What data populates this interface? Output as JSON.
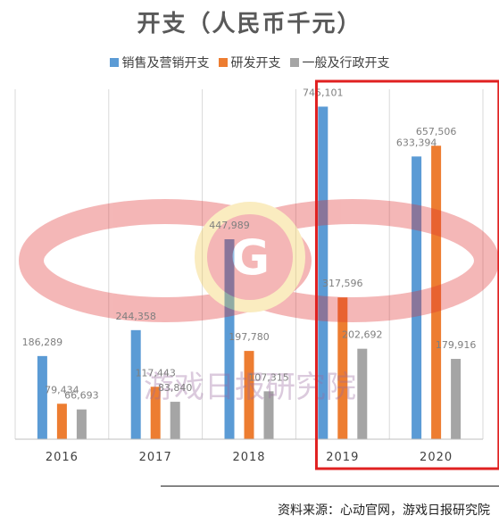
{
  "chart_data": {
    "type": "bar",
    "title": "开支（人民币千元）",
    "categories": [
      "2016",
      "2017",
      "2018",
      "2019",
      "2020"
    ],
    "series": [
      {
        "name": "销售及营销开支",
        "color": "#5b9bd5",
        "values": [
          186289,
          244358,
          447989,
          745101,
          633394
        ],
        "labels": [
          "186,289",
          "244,358",
          "447,989",
          "745,101",
          "633,394"
        ]
      },
      {
        "name": "研发开支",
        "color": "#ed7d31",
        "values": [
          79434,
          117443,
          197780,
          317596,
          657506
        ],
        "labels": [
          "79,434",
          "117,443",
          "197,780",
          "317,596",
          "657,506"
        ]
      },
      {
        "name": "一般及行政开支",
        "color": "#a5a5a5",
        "values": [
          66693,
          83840,
          107315,
          202692,
          179916
        ],
        "labels": [
          "66,693",
          "83,840",
          "107,315",
          "202,692",
          "179,916"
        ]
      }
    ],
    "ylim": [
      0,
      800000
    ],
    "grid": "vertical",
    "legend_position": "top",
    "highlight_category": "2019",
    "highlight_color": "#e02020"
  },
  "watermark": {
    "text": "游戏日报研究院",
    "logo_letter": "G"
  },
  "source": "资料来源：心动官网，游戏日报研究院"
}
